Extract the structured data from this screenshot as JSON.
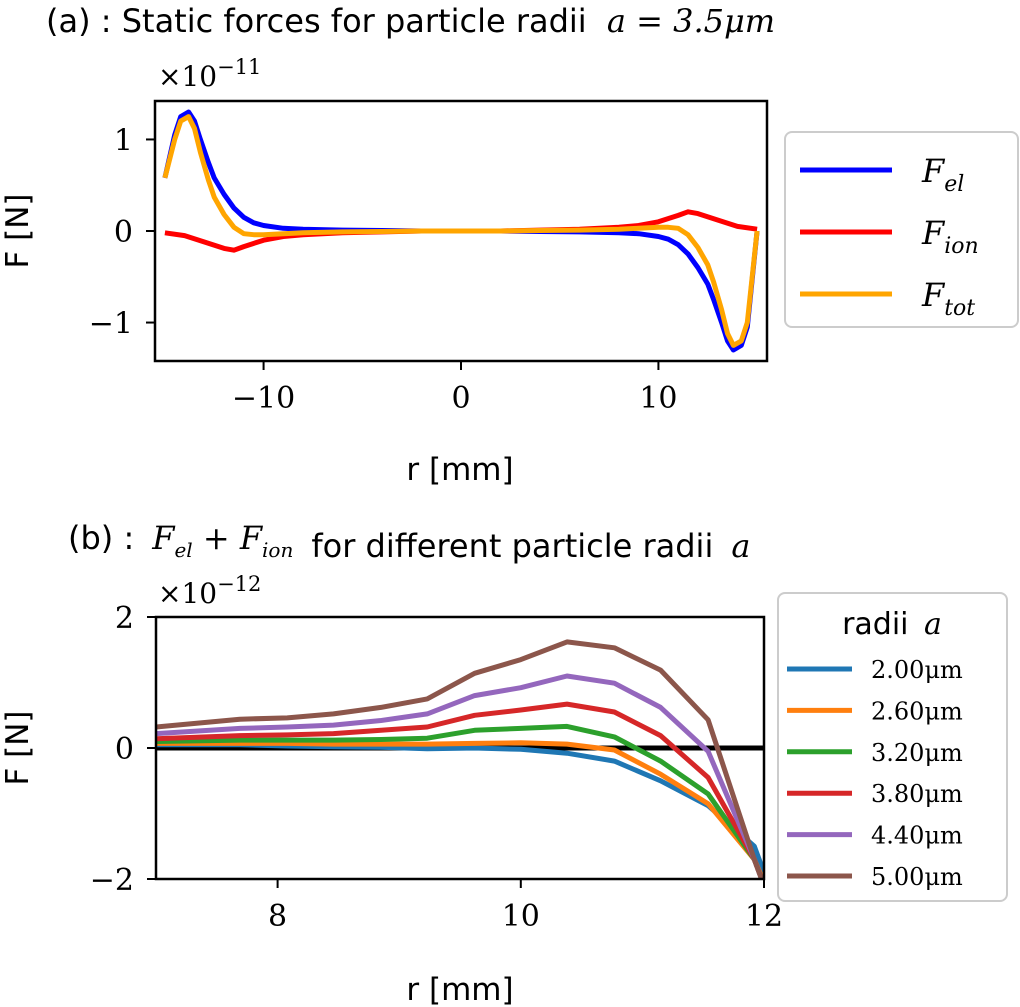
{
  "chart_data": [
    {
      "type": "line",
      "title_prefix": "(a) : Static forces for particle radii",
      "title_math": "a = 3.5μm",
      "multiplier_base": "×10",
      "multiplier_exp": "−11",
      "xlabel": "r [mm]",
      "ylabel": "F [N]",
      "xlim": [
        -15.5,
        15.5
      ],
      "ylim": [
        -1.42,
        1.42
      ],
      "xticks": [
        -10,
        0,
        10
      ],
      "xtick_labels": [
        "−10",
        "0",
        "10"
      ],
      "yticks": [
        -1,
        0,
        1
      ],
      "ytick_labels": [
        "−1",
        "0",
        "1"
      ],
      "grid": false,
      "legend_position": "right",
      "series": [
        {
          "name": "F_el",
          "label_main": "F",
          "label_sub": "el",
          "color": "#0000ff",
          "x": [
            -15.0,
            -14.5,
            -14.2,
            -13.8,
            -13.5,
            -13.2,
            -12.8,
            -12.5,
            -12.0,
            -11.5,
            -11.0,
            -10.5,
            -10.0,
            -9.0,
            -8.0,
            -6.0,
            -4.0,
            -2.0,
            0.0,
            2.0,
            4.0,
            6.0,
            8.0,
            9.0,
            10.0,
            10.5,
            11.0,
            11.5,
            12.0,
            12.5,
            12.8,
            13.2,
            13.5,
            13.8,
            14.2,
            14.5,
            15.0
          ],
          "y": [
            0.58,
            1.05,
            1.25,
            1.3,
            1.2,
            1.0,
            0.75,
            0.58,
            0.4,
            0.25,
            0.15,
            0.09,
            0.06,
            0.03,
            0.02,
            0.01,
            0.005,
            0.0,
            0.0,
            0.0,
            -0.005,
            -0.01,
            -0.02,
            -0.03,
            -0.06,
            -0.09,
            -0.15,
            -0.25,
            -0.4,
            -0.58,
            -0.75,
            -1.0,
            -1.2,
            -1.3,
            -1.25,
            -1.05,
            0.0
          ]
        },
        {
          "name": "F_ion",
          "label_main": "F",
          "label_sub": "ion",
          "color": "#ff0000",
          "x": [
            -15.0,
            -14.0,
            -13.0,
            -12.0,
            -11.5,
            -11.0,
            -10.0,
            -9.0,
            -8.0,
            -6.0,
            -4.0,
            -2.0,
            0.0,
            2.0,
            4.0,
            6.0,
            8.0,
            9.0,
            10.0,
            11.0,
            11.5,
            12.0,
            13.0,
            14.0,
            15.0
          ],
          "y": [
            -0.02,
            -0.05,
            -0.12,
            -0.19,
            -0.21,
            -0.17,
            -0.1,
            -0.06,
            -0.04,
            -0.02,
            -0.01,
            0.0,
            0.0,
            0.0,
            0.01,
            0.02,
            0.04,
            0.06,
            0.1,
            0.17,
            0.21,
            0.19,
            0.12,
            0.05,
            0.02
          ]
        },
        {
          "name": "F_tot",
          "label_main": "F",
          "label_sub": "tot",
          "color": "#ffa500",
          "x": [
            -15.0,
            -14.5,
            -14.2,
            -13.8,
            -13.5,
            -13.2,
            -12.8,
            -12.5,
            -12.0,
            -11.5,
            -11.0,
            -10.5,
            -10.0,
            -9.0,
            -8.0,
            -6.0,
            -4.0,
            -2.0,
            0.0,
            2.0,
            4.0,
            6.0,
            8.0,
            9.0,
            10.0,
            10.5,
            11.0,
            11.5,
            12.0,
            12.5,
            12.8,
            13.2,
            13.5,
            13.8,
            14.2,
            14.5,
            15.0
          ],
          "y": [
            0.58,
            1.0,
            1.2,
            1.25,
            1.12,
            0.86,
            0.56,
            0.37,
            0.18,
            0.04,
            -0.03,
            -0.04,
            -0.04,
            -0.03,
            -0.02,
            -0.01,
            -0.005,
            0.0,
            0.0,
            0.0,
            0.005,
            0.01,
            0.02,
            0.03,
            0.04,
            0.04,
            0.03,
            -0.04,
            -0.18,
            -0.37,
            -0.56,
            -0.86,
            -1.12,
            -1.25,
            -1.2,
            -1.0,
            0.0
          ]
        }
      ]
    },
    {
      "type": "line",
      "title_prefix": "(b) :",
      "title_math": "F_el + F_ion",
      "title_suffix": "for different particle radii",
      "title_var": "a",
      "multiplier_base": "×10",
      "multiplier_exp": "−12",
      "xlabel": "r [mm]",
      "ylabel": "F [N]",
      "xlim": [
        7,
        12
      ],
      "ylim": [
        -2,
        2
      ],
      "xticks": [
        8,
        10,
        12
      ],
      "xtick_labels": [
        "8",
        "10",
        "12"
      ],
      "yticks": [
        -2,
        0,
        2
      ],
      "ytick_labels": [
        "−2",
        "0",
        "2"
      ],
      "zero_line": true,
      "grid": false,
      "legend_title_text": "radii",
      "legend_title_var": "a",
      "legend_position": "right",
      "x": [
        7.0,
        7.69,
        8.08,
        8.46,
        8.85,
        9.23,
        9.62,
        10.0,
        10.38,
        10.77,
        11.15,
        11.54,
        11.92,
        12.0
      ],
      "series": [
        {
          "name": "2.00μm",
          "color": "#1f77b4",
          "y": [
            0.05,
            0.05,
            0.03,
            0.02,
            0.01,
            -0.01,
            0.0,
            -0.02,
            -0.08,
            -0.2,
            -0.5,
            -0.88,
            -1.5,
            -1.9
          ]
        },
        {
          "name": "2.60μm",
          "color": "#ff7f0e",
          "y": [
            0.07,
            0.07,
            0.07,
            0.06,
            0.06,
            0.06,
            0.07,
            0.08,
            0.06,
            -0.03,
            -0.4,
            -0.85,
            -1.7,
            -2.05
          ]
        },
        {
          "name": "3.20μm",
          "color": "#2ca02c",
          "y": [
            0.1,
            0.12,
            0.12,
            0.12,
            0.13,
            0.15,
            0.27,
            0.3,
            0.33,
            0.17,
            -0.2,
            -0.7,
            -1.7,
            -2.1
          ]
        },
        {
          "name": "3.80μm",
          "color": "#d62728",
          "y": [
            0.14,
            0.19,
            0.2,
            0.22,
            0.27,
            0.32,
            0.5,
            0.58,
            0.67,
            0.55,
            0.19,
            -0.45,
            -1.7,
            -2.1
          ]
        },
        {
          "name": "4.40μm",
          "color": "#9467bd",
          "y": [
            0.22,
            0.3,
            0.32,
            0.35,
            0.42,
            0.52,
            0.8,
            0.92,
            1.1,
            0.99,
            0.62,
            -0.05,
            -1.7,
            -2.1
          ]
        },
        {
          "name": "5.00μm",
          "color": "#8c564b",
          "y": [
            0.32,
            0.44,
            0.46,
            0.52,
            0.62,
            0.75,
            1.14,
            1.35,
            1.62,
            1.53,
            1.19,
            0.43,
            -1.7,
            -2.1
          ]
        }
      ]
    }
  ]
}
